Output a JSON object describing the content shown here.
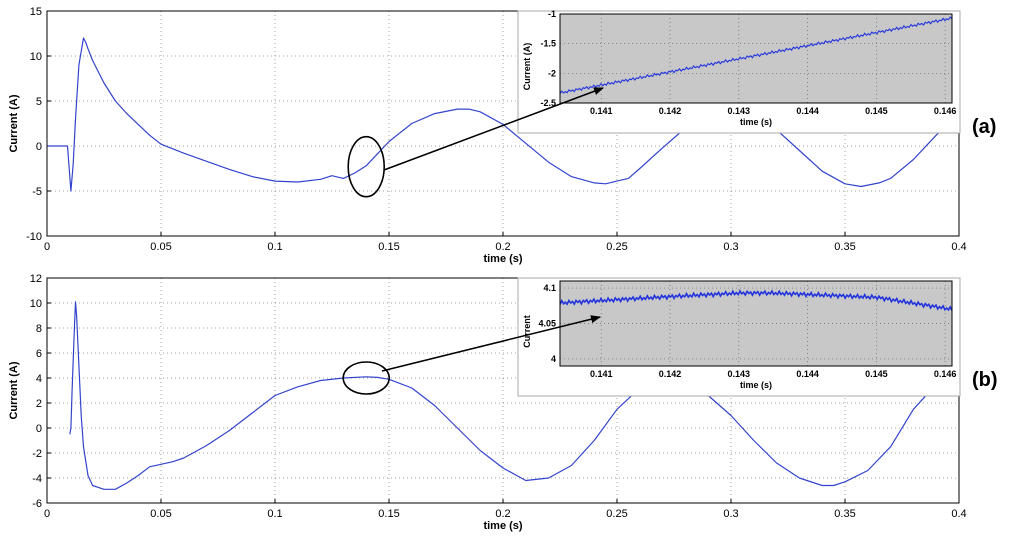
{
  "chart_data": [
    {
      "panel_label": "(a)",
      "type": "line",
      "xlabel": "time (s)",
      "ylabel": "Current (A)",
      "xlim": [
        0,
        0.4
      ],
      "ylim": [
        -10,
        15
      ],
      "xticks": [
        0,
        0.05,
        0.1,
        0.15,
        0.2,
        0.25,
        0.3,
        0.35,
        0.4
      ],
      "xtick_labels": [
        "0",
        "0.05",
        "0.1",
        "0.15",
        "0.2",
        "0.25",
        "0.3",
        "0.35",
        "0.4"
      ],
      "yticks": [
        -10,
        -5,
        0,
        5,
        10,
        15
      ],
      "ytick_labels": [
        "-10",
        "-5",
        "0",
        "5",
        "10",
        "15"
      ],
      "grid": true,
      "line_color": "#3344cc",
      "series": [
        {
          "x": [
            0,
            0.008,
            0.009,
            0.0105,
            0.0115,
            0.0125,
            0.014,
            0.016,
            0.017,
            0.018,
            0.02,
            0.025,
            0.03,
            0.035,
            0.04,
            0.045,
            0.05,
            0.055,
            0.06,
            0.07,
            0.08,
            0.09,
            0.1,
            0.11,
            0.12,
            0.125,
            0.13,
            0.135,
            0.14,
            0.15,
            0.16,
            0.17,
            0.18,
            0.185,
            0.19,
            0.2,
            0.21,
            0.22,
            0.23,
            0.24,
            0.245,
            0.25,
            0.255,
            0.26,
            0.27,
            0.28,
            0.29,
            0.3,
            0.305,
            0.31,
            0.32,
            0.33,
            0.34,
            0.35,
            0.357,
            0.365,
            0.37,
            0.38,
            0.39,
            0.4
          ],
          "y": [
            0,
            0,
            0,
            -5,
            -2,
            3,
            9,
            12,
            11.5,
            10.8,
            9.5,
            7,
            5,
            3.6,
            2.4,
            1.2,
            0.2,
            -0.3,
            -0.8,
            -1.7,
            -2.6,
            -3.4,
            -3.9,
            -4,
            -3.7,
            -3.3,
            -3.6,
            -3.0,
            -2.2,
            0.5,
            2.5,
            3.6,
            4.1,
            4.1,
            3.8,
            2.4,
            0.3,
            -1.8,
            -3.4,
            -4.1,
            -4.2,
            -3.9,
            -3.6,
            -2.5,
            -0.2,
            2.0,
            3.5,
            4.0,
            4.0,
            3.5,
            1.8,
            -0.5,
            -2.8,
            -4.2,
            -4.5,
            -4.1,
            -3.6,
            -1.5,
            1.2,
            3.6
          ]
        }
      ],
      "annotation": {
        "ellipse_center": [
          0.14,
          -2.3
        ]
      },
      "inset": {
        "xlim": [
          0.1404,
          0.1461
        ],
        "ylim": [
          -2.5,
          -1
        ],
        "xticks": [
          0.141,
          0.142,
          0.143,
          0.144,
          0.145,
          0.146
        ],
        "xtick_labels": [
          "0.141",
          "0.142",
          "0.143",
          "0.144",
          "0.145",
          "0.146"
        ],
        "yticks": [
          -2.5,
          -2,
          -1.5,
          -1
        ],
        "ytick_labels": [
          "-2.5",
          "-2",
          "-1.5",
          "-1"
        ],
        "xlabel": "time (s)",
        "ylabel": "Current (A)",
        "background": "#c8c8c8",
        "series": [
          {
            "x": [
              0.1404,
              0.1461
            ],
            "y": [
              -2.33,
              -1.07
            ],
            "ripple": 0.025
          }
        ]
      }
    },
    {
      "panel_label": "(b)",
      "type": "line",
      "xlabel": "time (s)",
      "ylabel": "Current (A)",
      "xlim": [
        0,
        0.4
      ],
      "ylim": [
        -6,
        12
      ],
      "xticks": [
        0,
        0.05,
        0.1,
        0.15,
        0.2,
        0.25,
        0.3,
        0.35,
        0.4
      ],
      "xtick_labels": [
        "0",
        "0.05",
        "0.1",
        "0.15",
        "0.2",
        "0.25",
        "0.3",
        "0.35",
        "0.4"
      ],
      "yticks": [
        -6,
        -4,
        -2,
        0,
        2,
        4,
        6,
        8,
        10,
        12
      ],
      "ytick_labels": [
        "-6",
        "-4",
        "-2",
        "0",
        "2",
        "4",
        "6",
        "8",
        "10",
        "12"
      ],
      "grid": true,
      "line_color": "#3344cc",
      "series": [
        {
          "x": [
            0.01,
            0.0105,
            0.011,
            0.012,
            0.0125,
            0.013,
            0.014,
            0.015,
            0.016,
            0.018,
            0.02,
            0.025,
            0.03,
            0.035,
            0.04,
            0.045,
            0.05,
            0.055,
            0.06,
            0.07,
            0.08,
            0.09,
            0.1,
            0.11,
            0.12,
            0.13,
            0.14,
            0.145,
            0.15,
            0.16,
            0.17,
            0.18,
            0.19,
            0.2,
            0.21,
            0.22,
            0.23,
            0.24,
            0.25,
            0.26,
            0.27,
            0.28,
            0.29,
            0.3,
            0.31,
            0.32,
            0.33,
            0.34,
            0.345,
            0.35,
            0.36,
            0.37,
            0.38,
            0.39,
            0.4
          ],
          "y": [
            -0.5,
            0,
            3,
            8,
            10.1,
            9,
            5,
            1,
            -1.5,
            -3.8,
            -4.6,
            -4.9,
            -4.9,
            -4.4,
            -3.8,
            -3.1,
            -2.9,
            -2.7,
            -2.4,
            -1.4,
            -0.2,
            1.2,
            2.6,
            3.3,
            3.8,
            4.0,
            4.1,
            4.05,
            3.9,
            3.2,
            1.8,
            0,
            -1.8,
            -3.2,
            -4.2,
            -4.0,
            -3.0,
            -1.0,
            1.5,
            3.2,
            3.6,
            3.4,
            2.6,
            1.0,
            -1.0,
            -2.8,
            -4.0,
            -4.6,
            -4.6,
            -4.3,
            -3.4,
            -1.5,
            1.5,
            3.5,
            3.0
          ]
        }
      ],
      "annotation": {
        "ellipse_center": [
          0.14,
          4.0
        ]
      },
      "inset": {
        "xlim": [
          0.1404,
          0.1461
        ],
        "ylim": [
          3.99,
          4.11
        ],
        "xticks": [
          0.141,
          0.142,
          0.143,
          0.144,
          0.145,
          0.146
        ],
        "xtick_labels": [
          "0.141",
          "0.142",
          "0.143",
          "0.144",
          "0.145",
          "0.146"
        ],
        "yticks": [
          4,
          4.05,
          4.1
        ],
        "ytick_labels": [
          "4",
          "4.05",
          "4.1"
        ],
        "xlabel": "time (s)",
        "ylabel": "Current",
        "background": "#c8c8c8",
        "series": [
          {
            "x": [
              0.1404,
              0.142,
              0.143,
              0.1435,
              0.145,
              0.1461
            ],
            "y": [
              4.079,
              4.088,
              4.093,
              4.093,
              4.087,
              4.07
            ],
            "ripple": 0.003
          }
        ]
      }
    }
  ]
}
